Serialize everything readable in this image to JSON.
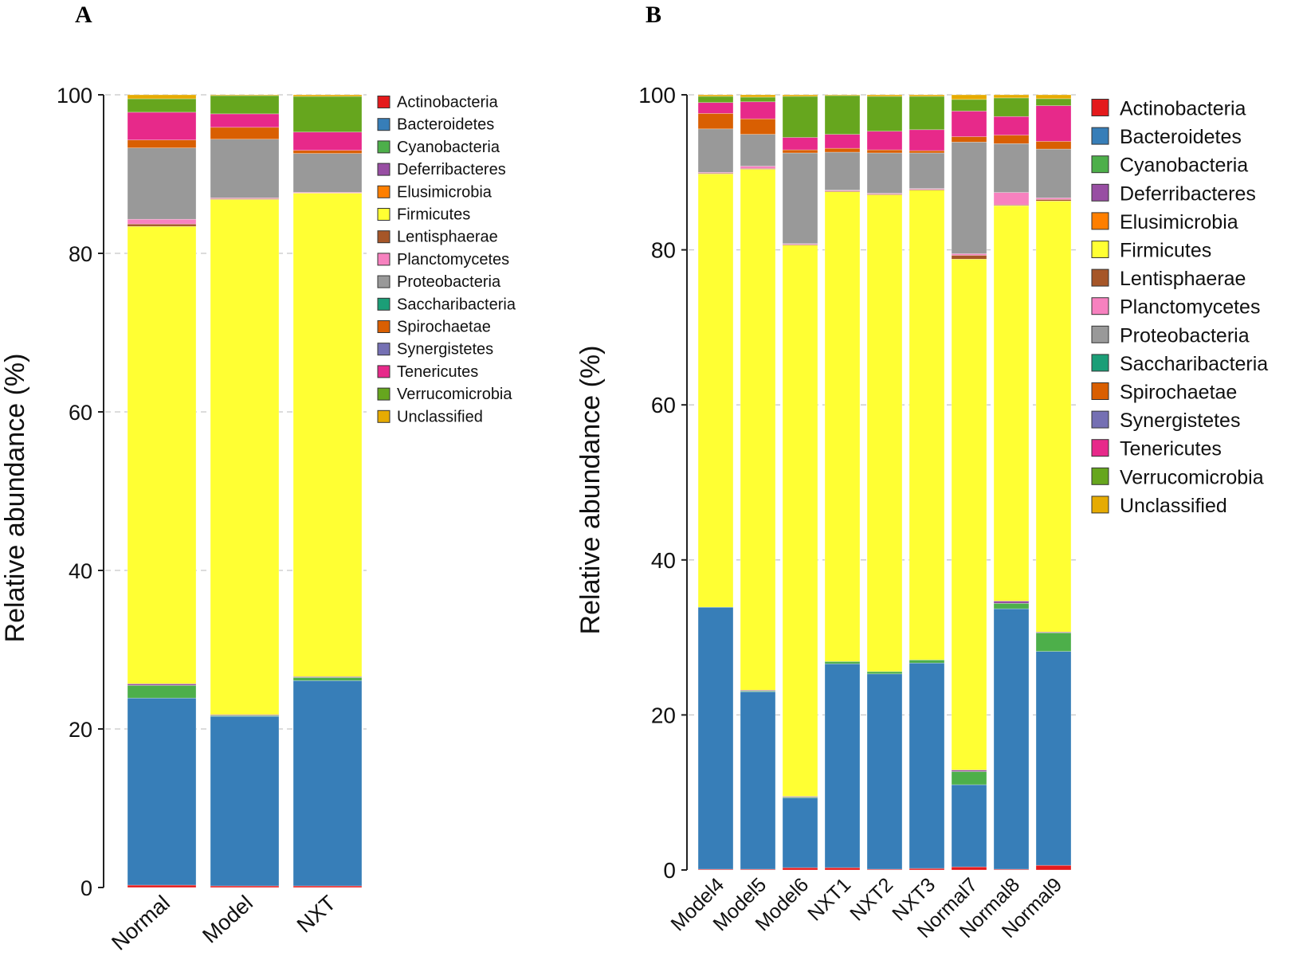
{
  "phyla": [
    "Actinobacteria",
    "Bacteroidetes",
    "Cyanobacteria",
    "Deferribacteres",
    "Elusimicrobia",
    "Firmicutes",
    "Lentisphaerae",
    "Planctomycetes",
    "Proteobacteria",
    "Saccharibacteria",
    "Spirochaetae",
    "Synergistetes",
    "Tenericutes",
    "Verrucomicrobia",
    "Unclassified"
  ],
  "colors": {
    "Actinobacteria": "#e41a1c",
    "Bacteroidetes": "#377eb8",
    "Cyanobacteria": "#4daf4a",
    "Deferribacteres": "#984ea3",
    "Elusimicrobia": "#ff7f00",
    "Firmicutes": "#ffff33",
    "Lentisphaerae": "#a65628",
    "Planctomycetes": "#f781bf",
    "Proteobacteria": "#999999",
    "Saccharibacteria": "#1b9e77",
    "Spirochaetae": "#d95f02",
    "Synergistetes": "#7570b3",
    "Tenericutes": "#e7298a",
    "Verrucomicrobia": "#66a61e",
    "Unclassified": "#e6ab02"
  },
  "chart_data": [
    {
      "panel": "A",
      "type": "bar",
      "stacked": true,
      "ylabel": "Relative abundance (%)",
      "ylim": [
        0,
        100
      ],
      "yticks": [
        "0",
        "20",
        "40",
        "60",
        "80",
        "100"
      ],
      "grid": true,
      "legend_position": "right",
      "categories": [
        "Normal",
        "Model",
        "NXT"
      ],
      "series": [
        {
          "name": "Actinobacteria",
          "values": [
            0.3,
            0.2,
            0.2
          ]
        },
        {
          "name": "Bacteroidetes",
          "values": [
            23.6,
            21.4,
            25.9
          ]
        },
        {
          "name": "Cyanobacteria",
          "values": [
            1.6,
            0.1,
            0.4
          ]
        },
        {
          "name": "Deferribacteres",
          "values": [
            0.2,
            0.1,
            0.1
          ]
        },
        {
          "name": "Elusimicrobia",
          "values": [
            0.0,
            0.0,
            0.0
          ]
        },
        {
          "name": "Firmicutes",
          "values": [
            57.7,
            65.0,
            61.0
          ]
        },
        {
          "name": "Lentisphaerae",
          "values": [
            0.3,
            0.1,
            0.0
          ]
        },
        {
          "name": "Planctomycetes",
          "values": [
            0.6,
            0.1,
            0.1
          ]
        },
        {
          "name": "Proteobacteria",
          "values": [
            9.0,
            7.4,
            4.9
          ]
        },
        {
          "name": "Saccharibacteria",
          "values": [
            0.0,
            0.0,
            0.0
          ]
        },
        {
          "name": "Spirochaetae",
          "values": [
            1.0,
            1.5,
            0.4
          ]
        },
        {
          "name": "Synergistetes",
          "values": [
            0.0,
            0.0,
            0.0
          ]
        },
        {
          "name": "Tenericutes",
          "values": [
            3.5,
            1.7,
            2.3
          ]
        },
        {
          "name": "Verrucomicrobia",
          "values": [
            1.7,
            2.3,
            4.5
          ]
        },
        {
          "name": "Unclassified",
          "values": [
            0.5,
            0.1,
            0.2
          ]
        }
      ]
    },
    {
      "panel": "B",
      "type": "bar",
      "stacked": true,
      "ylabel": "Relative abundance (%)",
      "ylim": [
        0,
        100
      ],
      "yticks": [
        "0",
        "20",
        "40",
        "60",
        "80",
        "100"
      ],
      "grid": true,
      "legend_position": "right",
      "categories": [
        "Model4",
        "Model5",
        "Model6",
        "NXT1",
        "NXT2",
        "NXT3",
        "Normal7",
        "Normal8",
        "Normal9"
      ],
      "series": [
        {
          "name": "Actinobacteria",
          "values": [
            0.1,
            0.1,
            0.3,
            0.3,
            0.1,
            0.2,
            0.4,
            0.1,
            0.6
          ]
        },
        {
          "name": "Bacteroidetes",
          "values": [
            33.8,
            22.9,
            9.0,
            26.3,
            25.2,
            26.5,
            10.6,
            33.6,
            27.6
          ]
        },
        {
          "name": "Cyanobacteria",
          "values": [
            0.0,
            0.1,
            0.1,
            0.3,
            0.3,
            0.4,
            1.7,
            0.7,
            2.4
          ]
        },
        {
          "name": "Deferribacteres",
          "values": [
            0.0,
            0.1,
            0.1,
            0.0,
            0.0,
            0.0,
            0.2,
            0.3,
            0.1
          ]
        },
        {
          "name": "Elusimicrobia",
          "values": [
            0.0,
            0.0,
            0.0,
            0.0,
            0.0,
            0.0,
            0.0,
            0.0,
            0.0
          ]
        },
        {
          "name": "Firmicutes",
          "values": [
            55.9,
            67.2,
            71.1,
            60.6,
            61.5,
            60.6,
            65.9,
            51.0,
            55.6
          ]
        },
        {
          "name": "Lentisphaerae",
          "values": [
            0.1,
            0.1,
            0.1,
            0.1,
            0.1,
            0.1,
            0.5,
            0.1,
            0.2
          ]
        },
        {
          "name": "Planctomycetes",
          "values": [
            0.1,
            0.3,
            0.1,
            0.1,
            0.1,
            0.1,
            0.2,
            1.6,
            0.2
          ]
        },
        {
          "name": "Proteobacteria",
          "values": [
            5.6,
            4.1,
            11.7,
            4.9,
            5.2,
            4.6,
            14.4,
            6.3,
            6.3
          ]
        },
        {
          "name": "Saccharibacteria",
          "values": [
            0.0,
            0.0,
            0.0,
            0.0,
            0.0,
            0.0,
            0.0,
            0.0,
            0.0
          ]
        },
        {
          "name": "Spirochaetae",
          "values": [
            2.0,
            2.0,
            0.4,
            0.5,
            0.4,
            0.3,
            0.7,
            1.1,
            1.0
          ]
        },
        {
          "name": "Synergistetes",
          "values": [
            0.0,
            0.0,
            0.0,
            0.0,
            0.0,
            0.0,
            0.0,
            0.0,
            0.0
          ]
        },
        {
          "name": "Tenericutes",
          "values": [
            1.4,
            2.2,
            1.6,
            1.8,
            2.4,
            2.7,
            3.3,
            2.4,
            4.6
          ]
        },
        {
          "name": "Verrucomicrobia",
          "values": [
            0.8,
            0.6,
            5.3,
            5.0,
            4.5,
            4.3,
            1.5,
            2.4,
            0.9
          ]
        },
        {
          "name": "Unclassified",
          "values": [
            0.2,
            0.3,
            0.2,
            0.1,
            0.2,
            0.2,
            0.6,
            0.4,
            0.5
          ]
        }
      ]
    }
  ],
  "panels": {
    "a": {
      "letter": "A"
    },
    "b": {
      "letter": "B"
    }
  }
}
